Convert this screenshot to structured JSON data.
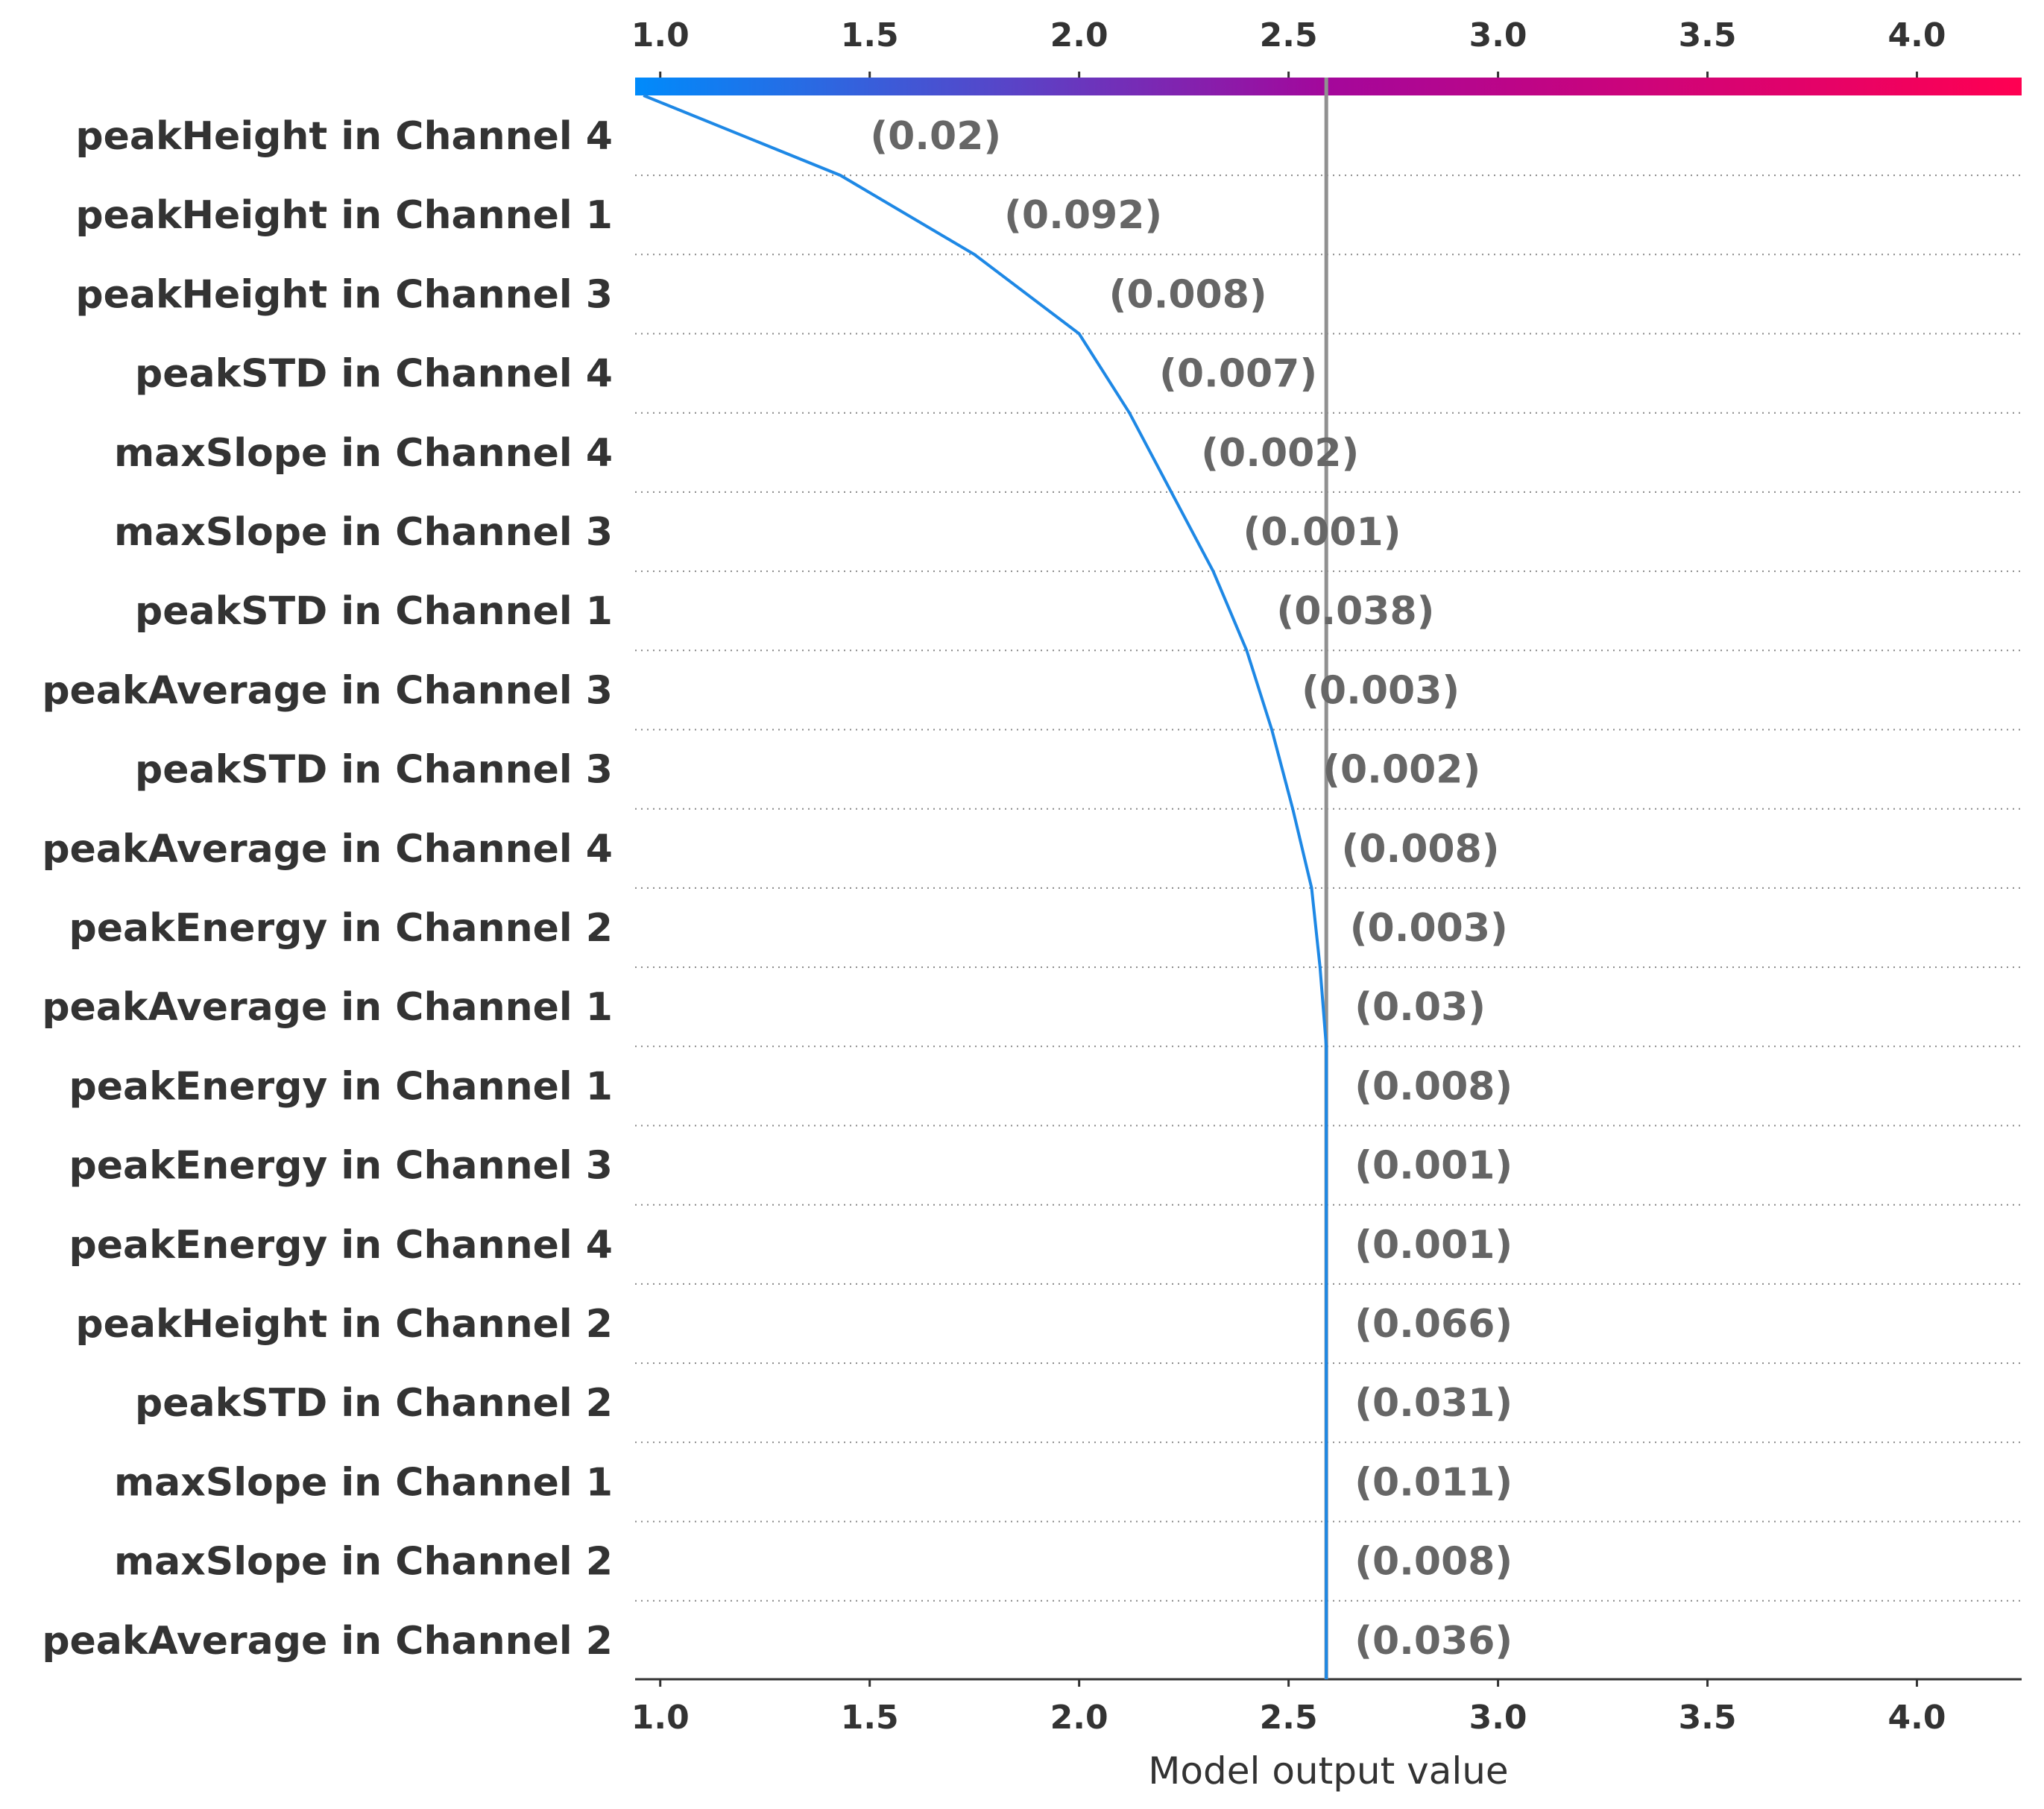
{
  "chart_data": {
    "type": "line",
    "xlabel": "Model output value",
    "xlim": [
      0.94,
      4.25
    ],
    "x_ticks": [
      "1.0",
      "1.5",
      "2.0",
      "2.5",
      "3.0",
      "3.5",
      "4.0"
    ],
    "x_tick_values": [
      1.0,
      1.5,
      2.0,
      2.5,
      3.0,
      3.5,
      4.0
    ],
    "base_value": 0.96,
    "prediction": 2.59,
    "colorbar": {
      "from_color": "#008bfb",
      "mid_color": "#a4079b",
      "to_color": "#ff0052"
    },
    "line_color": "#1e88e5",
    "reference_line_color": "#909090",
    "features": [
      {
        "name": "peakHeight in Channel 4",
        "value_label": "(0.02)",
        "output": 1.43
      },
      {
        "name": "peakHeight in Channel 1",
        "value_label": "(0.092)",
        "output": 1.75
      },
      {
        "name": "peakHeight in Channel 3",
        "value_label": "(0.008)",
        "output": 2.0
      },
      {
        "name": "peakSTD in Channel 4",
        "value_label": "(0.007)",
        "output": 2.12
      },
      {
        "name": "maxSlope in Channel 4",
        "value_label": "(0.002)",
        "output": 2.22
      },
      {
        "name": "maxSlope in Channel 3",
        "value_label": "(0.001)",
        "output": 2.32
      },
      {
        "name": "peakSTD in Channel 1",
        "value_label": "(0.038)",
        "output": 2.4
      },
      {
        "name": "peakAverage in Channel 3",
        "value_label": "(0.003)",
        "output": 2.46
      },
      {
        "name": "peakSTD in Channel 3",
        "value_label": "(0.002)",
        "output": 2.51
      },
      {
        "name": "peakAverage in Channel 4",
        "value_label": "(0.008)",
        "output": 2.555
      },
      {
        "name": "peakEnergy in Channel 2",
        "value_label": "(0.003)",
        "output": 2.575
      },
      {
        "name": "peakAverage in Channel 1",
        "value_label": "(0.03)",
        "output": 2.59
      },
      {
        "name": "peakEnergy in Channel 1",
        "value_label": "(0.008)",
        "output": 2.59
      },
      {
        "name": "peakEnergy in Channel 3",
        "value_label": "(0.001)",
        "output": 2.59
      },
      {
        "name": "peakEnergy in Channel 4",
        "value_label": "(0.001)",
        "output": 2.59
      },
      {
        "name": "peakHeight in Channel 2",
        "value_label": "(0.066)",
        "output": 2.59
      },
      {
        "name": "peakSTD in Channel 2",
        "value_label": "(0.031)",
        "output": 2.59
      },
      {
        "name": "maxSlope in Channel 1",
        "value_label": "(0.011)",
        "output": 2.59
      },
      {
        "name": "maxSlope in Channel 2",
        "value_label": "(0.008)",
        "output": 2.59
      },
      {
        "name": "peakAverage in Channel 2",
        "value_label": "(0.036)",
        "output": 2.59
      }
    ]
  }
}
